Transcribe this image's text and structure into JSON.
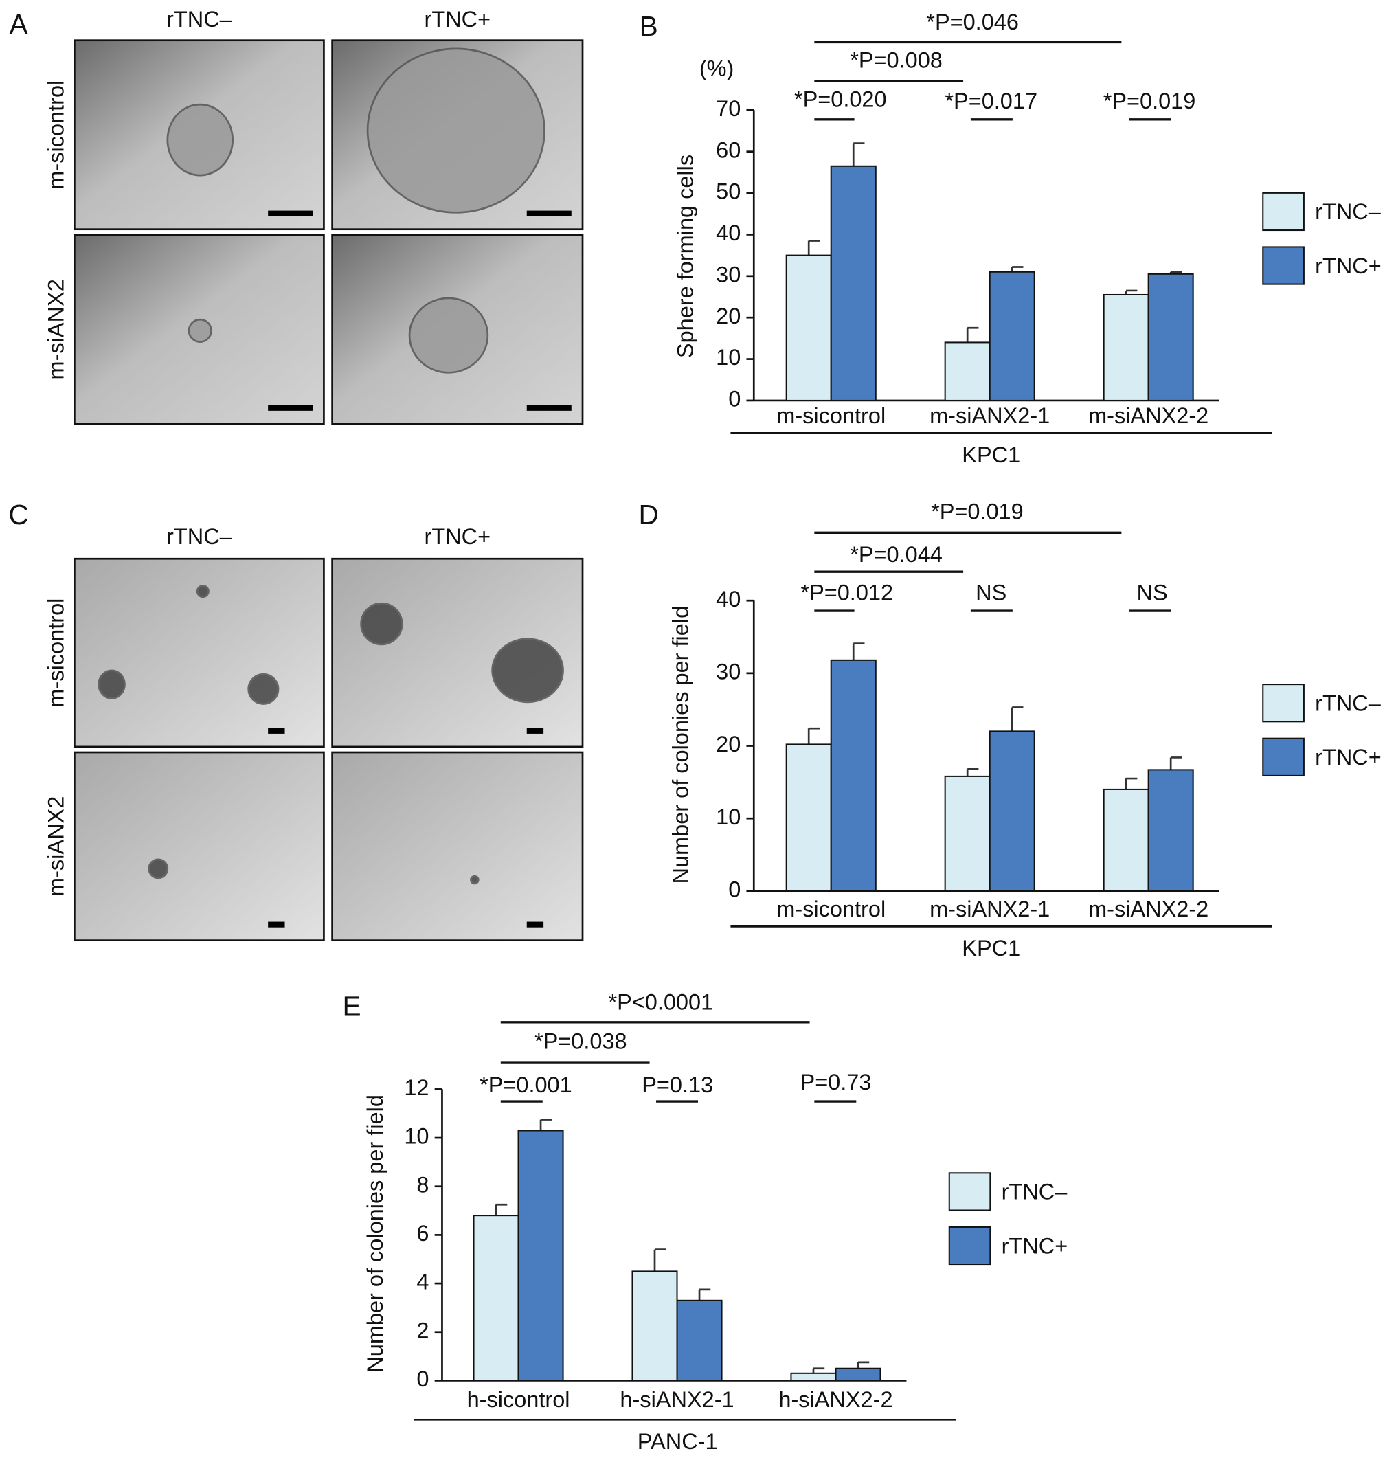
{
  "panels": {
    "A": {
      "label": "A",
      "columns": [
        "rTNC–",
        "rTNC+"
      ],
      "rows": [
        "m-sicontrol",
        "m-siANX2"
      ]
    },
    "C": {
      "label": "C",
      "columns": [
        "rTNC–",
        "rTNC+"
      ],
      "rows": [
        "m-sicontrol",
        "m-siANX2"
      ]
    }
  },
  "chart_data": [
    {
      "type": "bar",
      "panel": "B",
      "unit": "(%)",
      "y_label": "Sphere forming cells",
      "categories": [
        "m-sicontrol",
        "m-siANX2-1",
        "m-siANX2-2"
      ],
      "group_label": "KPC1",
      "series": [
        {
          "name": "rTNC–",
          "color": "#d8ecf4",
          "values": [
            35,
            14,
            25.5
          ],
          "errors": [
            3.5,
            3.5,
            1
          ]
        },
        {
          "name": "rTNC+",
          "color": "#4a7dbf",
          "values": [
            56.5,
            31,
            30.5
          ],
          "errors": [
            5.5,
            1.2,
            0.5
          ]
        }
      ],
      "ylim": [
        0,
        70
      ],
      "yticks": [
        0,
        10,
        20,
        30,
        40,
        50,
        60,
        70
      ],
      "annotations": [
        "*P=0.046",
        "*P=0.008",
        "*P=0.020",
        "*P=0.017",
        "*P=0.019"
      ]
    },
    {
      "type": "bar",
      "panel": "D",
      "y_label": "Number of colonies per field",
      "categories": [
        "m-sicontrol",
        "m-siANX2-1",
        "m-siANX2-2"
      ],
      "group_label": "KPC1",
      "series": [
        {
          "name": "rTNC–",
          "color": "#d8ecf4",
          "values": [
            20.2,
            15.8,
            14
          ],
          "errors": [
            2.2,
            1,
            1.5
          ]
        },
        {
          "name": "rTNC+",
          "color": "#4a7dbf",
          "values": [
            31.8,
            22,
            16.7
          ],
          "errors": [
            2.3,
            3.3,
            1.7
          ]
        }
      ],
      "ylim": [
        0,
        40
      ],
      "yticks": [
        0,
        10,
        20,
        30,
        40
      ],
      "annotations": [
        "*P=0.019",
        "*P=0.044",
        "*P=0.012",
        "NS",
        "NS"
      ]
    },
    {
      "type": "bar",
      "panel": "E",
      "y_label": "Number of colonies per field",
      "categories": [
        "h-sicontrol",
        "h-siANX2-1",
        "h-siANX2-2"
      ],
      "group_label": "PANC-1",
      "series": [
        {
          "name": "rTNC–",
          "color": "#d8ecf4",
          "values": [
            6.8,
            4.5,
            0.3
          ],
          "errors": [
            0.45,
            0.9,
            0.2
          ]
        },
        {
          "name": "rTNC+",
          "color": "#4a7dbf",
          "values": [
            10.3,
            3.3,
            0.5
          ],
          "errors": [
            0.45,
            0.45,
            0.25
          ]
        }
      ],
      "ylim": [
        0,
        12
      ],
      "yticks": [
        0,
        2,
        4,
        6,
        8,
        10,
        12
      ],
      "annotations": [
        "*P<0.0001",
        "*P=0.038",
        "*P=0.001",
        "P=0.13",
        "P=0.73"
      ]
    }
  ]
}
